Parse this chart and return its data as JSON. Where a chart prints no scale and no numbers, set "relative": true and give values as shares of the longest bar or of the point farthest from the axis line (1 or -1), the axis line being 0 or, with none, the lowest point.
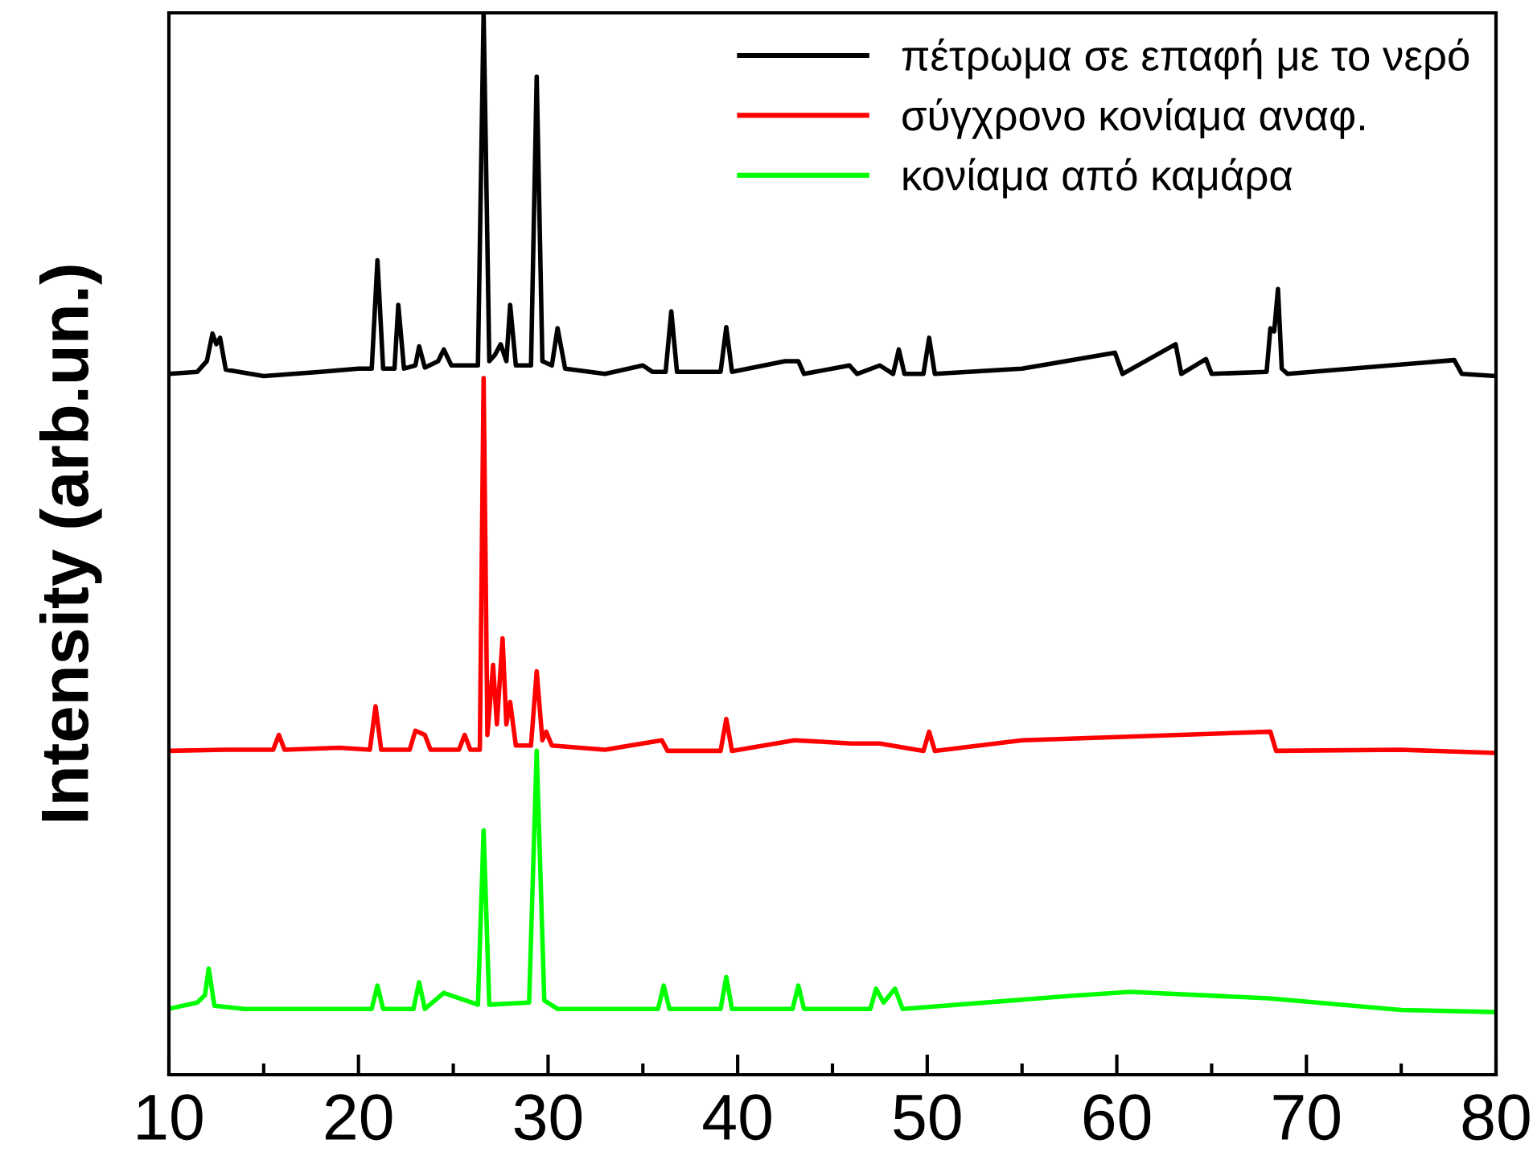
{
  "chart_data": {
    "type": "line",
    "ylabel": "Intensity (arb.un.)",
    "relative": true,
    "xlim": [
      10,
      80
    ],
    "xticks": [
      10,
      {
        "value": 15,
        "label": null
      },
      20,
      {
        "value": 25,
        "label": null
      },
      30,
      {
        "value": 35,
        "label": null
      },
      40,
      {
        "value": 45,
        "label": null
      },
      50,
      {
        "value": 55,
        "label": null
      },
      60,
      {
        "value": 65,
        "label": null
      },
      70,
      {
        "value": 75,
        "label": null
      },
      80
    ],
    "grid": false,
    "legend": "top right",
    "marker": "none",
    "line_style": "solid",
    "series": [
      {
        "name": "πέτρωμα σε επαφή με το νερό",
        "color": "#000000",
        "x": [
          10,
          11.5,
          12.0,
          12.3,
          12.5,
          12.7,
          13.0,
          15,
          18,
          20,
          20.7,
          21.0,
          21.3,
          21.9,
          22.1,
          22.4,
          23.0,
          23.2,
          23.5,
          24.2,
          24.5,
          24.9,
          26.3,
          26.6,
          26.9,
          27.2,
          27.5,
          27.8,
          28.0,
          28.3,
          29.1,
          29.4,
          29.7,
          30.2,
          30.5,
          30.9,
          33,
          35,
          35.5,
          36.2,
          36.5,
          36.8,
          39.1,
          39.4,
          39.7,
          42.5,
          43.2,
          43.5,
          45.9,
          46.3,
          47.5,
          48.2,
          48.5,
          48.8,
          49.8,
          50.1,
          50.4,
          55,
          59.9,
          60.3,
          63.1,
          63.4,
          64.7,
          65,
          67.9,
          68.1,
          68.3,
          68.5,
          68.7,
          69.0,
          77.8,
          78.2,
          80
        ],
        "values": [
          0.66,
          0.662,
          0.672,
          0.698,
          0.688,
          0.694,
          0.664,
          0.658,
          0.662,
          0.665,
          0.665,
          0.767,
          0.665,
          0.665,
          0.725,
          0.665,
          0.668,
          0.686,
          0.666,
          0.672,
          0.683,
          0.668,
          0.668,
          1.0,
          0.672,
          0.678,
          0.688,
          0.672,
          0.725,
          0.668,
          0.668,
          0.94,
          0.672,
          0.668,
          0.703,
          0.665,
          0.66,
          0.668,
          0.662,
          0.662,
          0.719,
          0.662,
          0.662,
          0.704,
          0.662,
          0.672,
          0.672,
          0.66,
          0.668,
          0.66,
          0.668,
          0.66,
          0.683,
          0.66,
          0.66,
          0.694,
          0.66,
          0.665,
          0.68,
          0.66,
          0.688,
          0.66,
          0.674,
          0.66,
          0.662,
          0.703,
          0.7,
          0.74,
          0.665,
          0.66,
          0.673,
          0.66,
          0.658
        ]
      },
      {
        "name": "σύγχρονο κονίαμα αναφ.",
        "color": "#ff0000",
        "x": [
          10,
          13,
          15.5,
          15.8,
          16.1,
          19,
          20.6,
          20.9,
          21.2,
          22.7,
          23.0,
          23.5,
          23.8,
          25.3,
          25.6,
          25.9,
          26.4,
          26.6,
          26.8,
          27.1,
          27.3,
          27.6,
          27.8,
          28.0,
          28.3,
          29.1,
          29.4,
          29.7,
          29.9,
          30.2,
          33,
          36,
          36.3,
          39.1,
          39.4,
          39.7,
          43,
          46,
          47.5,
          49.8,
          50.1,
          50.4,
          55,
          60,
          68.1,
          68.4,
          75,
          80
        ],
        "values": [
          0.305,
          0.306,
          0.306,
          0.32,
          0.306,
          0.308,
          0.306,
          0.347,
          0.306,
          0.306,
          0.324,
          0.32,
          0.306,
          0.306,
          0.32,
          0.306,
          0.306,
          0.656,
          0.32,
          0.386,
          0.33,
          0.411,
          0.33,
          0.351,
          0.31,
          0.31,
          0.38,
          0.315,
          0.323,
          0.31,
          0.306,
          0.315,
          0.305,
          0.305,
          0.335,
          0.305,
          0.315,
          0.312,
          0.312,
          0.305,
          0.323,
          0.305,
          0.315,
          0.318,
          0.323,
          0.305,
          0.306,
          0.303
        ]
      },
      {
        "name": "κονίαμα από καμάρα",
        "color": "#00ff00",
        "x": [
          10,
          11.5,
          11.9,
          12.1,
          12.4,
          14,
          20.7,
          21.0,
          21.3,
          22.9,
          23.2,
          23.5,
          24.5,
          26.3,
          26.6,
          26.9,
          29.0,
          29.4,
          29.8,
          30.5,
          35.8,
          36.1,
          36.4,
          39.1,
          39.4,
          39.7,
          42.9,
          43.2,
          43.5,
          47.0,
          47.3,
          47.7,
          48.3,
          48.7,
          57.4,
          60.7,
          68.0,
          75,
          80
        ],
        "values": [
          0.062,
          0.068,
          0.075,
          0.1,
          0.065,
          0.062,
          0.062,
          0.084,
          0.062,
          0.062,
          0.087,
          0.062,
          0.077,
          0.066,
          0.23,
          0.066,
          0.068,
          0.305,
          0.07,
          0.062,
          0.062,
          0.084,
          0.062,
          0.062,
          0.092,
          0.062,
          0.062,
          0.084,
          0.062,
          0.062,
          0.081,
          0.068,
          0.081,
          0.062,
          0.074,
          0.078,
          0.072,
          0.061,
          0.059
        ]
      }
    ]
  }
}
